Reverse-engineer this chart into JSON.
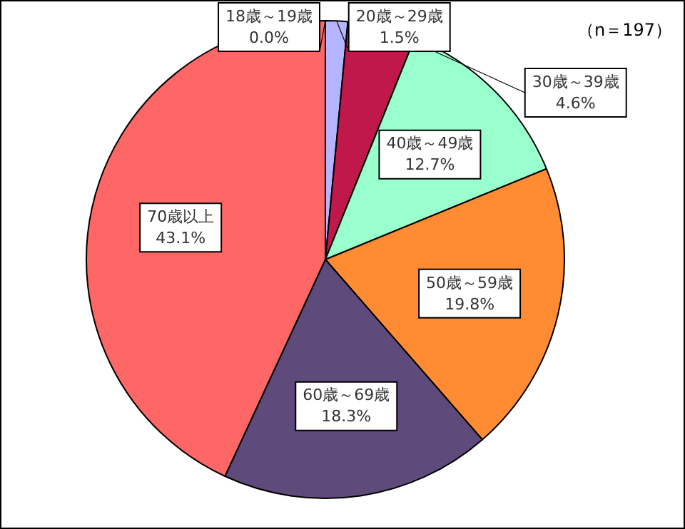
{
  "chart_data": {
    "type": "pie",
    "categories": [
      "18歳～19歳",
      "20歳～29歳",
      "30歳～39歳",
      "40歳～49歳",
      "50歳～59歳",
      "60歳～69歳",
      "70歳以上"
    ],
    "values": [
      0.0,
      1.5,
      4.6,
      12.7,
      19.8,
      18.3,
      43.1
    ],
    "colors": [
      "#9999ff",
      "#b4b4ff",
      "#c0184a",
      "#99ffcc",
      "#ff8c33",
      "#5f4b7b",
      "#ff6666"
    ],
    "value_labels": [
      "0.0%",
      "1.5%",
      "4.6%",
      "12.7%",
      "19.8%",
      "18.3%",
      "43.1%"
    ],
    "annotations": [
      "（n＝197）"
    ],
    "legend": false
  }
}
